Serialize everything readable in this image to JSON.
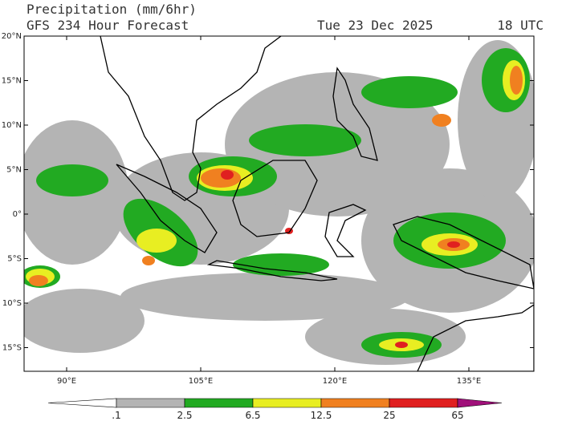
{
  "header": {
    "title": "Precipitation (mm/6hr)",
    "subtitle": "GFS 234 Hour Forecast",
    "date": "Tue 23 Dec 2025",
    "time": "18 UTC"
  },
  "map": {
    "lat_labels": [
      "20°N",
      "15°N",
      "10°N",
      "5°N",
      "0°",
      "5°S",
      "10°S",
      "15°S"
    ],
    "lon_labels": [
      "90°E",
      "105°E",
      "120°E",
      "135°E"
    ]
  },
  "colorbar": {
    "labels": [
      ".1",
      "2.5",
      "6.5",
      "12.5",
      "25",
      "65"
    ],
    "colors": [
      "#ffffff",
      "#b4b4b4",
      "#22aa22",
      "#e8ee22",
      "#f08020",
      "#e02020",
      "#a0107a"
    ]
  }
}
